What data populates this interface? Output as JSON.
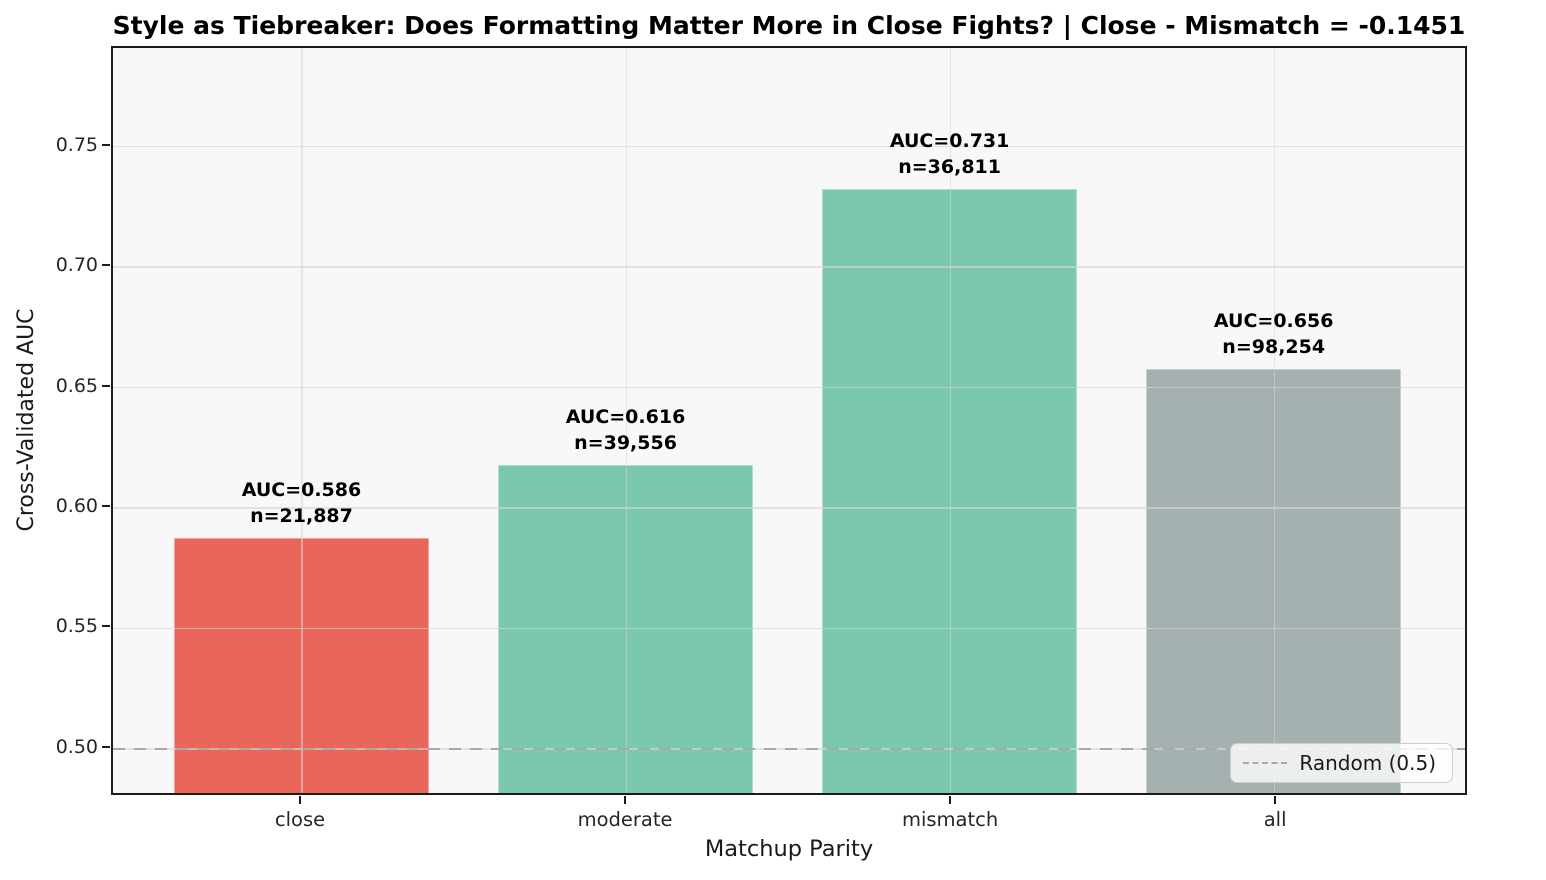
{
  "chart_data": {
    "type": "bar",
    "title": "Style as Tiebreaker: Does Formatting Matter More in Close Fights?  |  Close - Mismatch = -0.1451",
    "xlabel": "Matchup Parity",
    "ylabel": "Cross-Validated AUC",
    "categories": [
      "close",
      "moderate",
      "mismatch",
      "all"
    ],
    "values": [
      0.586,
      0.616,
      0.731,
      0.656
    ],
    "sample_sizes": [
      21887,
      39556,
      36811,
      98254
    ],
    "bar_annotations": [
      [
        "AUC=0.586",
        "n=21,887"
      ],
      [
        "AUC=0.616",
        "n=39,556"
      ],
      [
        "AUC=0.731",
        "n=36,811"
      ],
      [
        "AUC=0.656",
        "n=98,254"
      ]
    ],
    "bar_colors": [
      "#e9675a",
      "#7cc8ad",
      "#7cc8ad",
      "#a5b0b1"
    ],
    "ylim": [
      0.48,
      0.791
    ],
    "yticks": [
      0.5,
      0.55,
      0.6,
      0.65,
      0.7,
      0.75
    ],
    "ytick_labels": [
      "0.50",
      "0.55",
      "0.60",
      "0.65",
      "0.70",
      "0.75"
    ],
    "grid": true,
    "legend_position": "lower right",
    "reference_line": {
      "value": 0.5,
      "label": "Random (0.5)",
      "color": "#a9a9a9",
      "linestyle": "dashed"
    },
    "legend": {
      "entries": [
        {
          "label": "Random (0.5)",
          "marker": "dashed-line",
          "color": "#a9a9a9"
        }
      ]
    },
    "colors": {
      "axes_background": "#f8f8f8",
      "spine": "#1c1c1c",
      "grid": "#d6d6d6",
      "text": "#262626"
    }
  }
}
